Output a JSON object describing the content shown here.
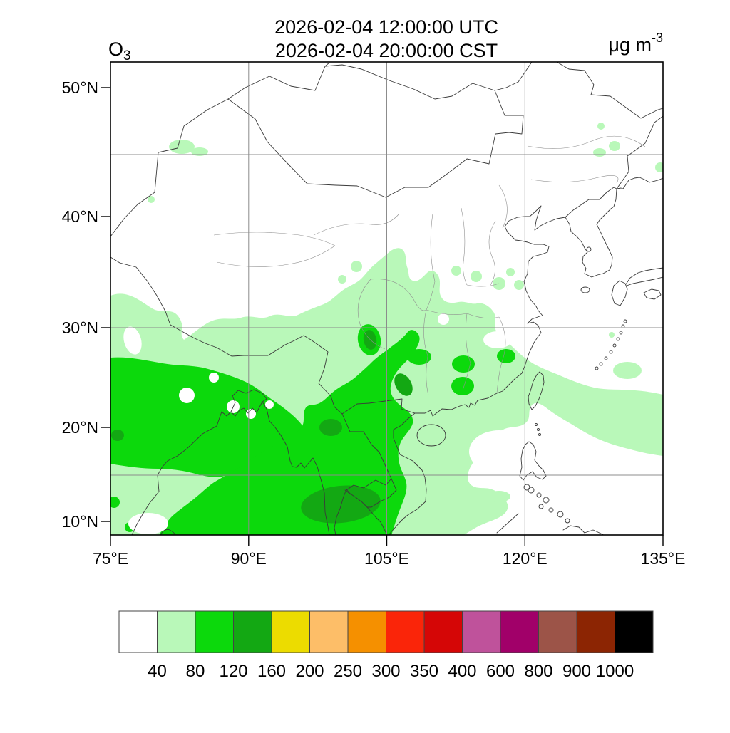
{
  "header": {
    "title_line1": "2026-02-04 12:00:00 UTC",
    "title_line2": "2026-02-04 20:00:00 CST",
    "species_main": "O",
    "species_sub": "3",
    "units_main": "μg m",
    "units_sup": "-3"
  },
  "axes": {
    "y_tick_labels": [
      "50°N",
      "40°N",
      "30°N",
      "20°N",
      "10°N"
    ],
    "x_tick_labels": [
      "75°E",
      "90°E",
      "105°E",
      "120°E",
      "135°E"
    ]
  },
  "colorbar": {
    "tick_labels": [
      "40",
      "80",
      "120",
      "160",
      "200",
      "250",
      "300",
      "350",
      "400",
      "600",
      "800",
      "900",
      "1000"
    ],
    "colors": [
      "#ffffff",
      "#b9f8b9",
      "#0cd90c",
      "#13a813",
      "#ecdc00",
      "#fdbe68",
      "#f59000",
      "#fa2509",
      "#d50606",
      "#bf529b",
      "#a10069",
      "#9c5448",
      "#8c2503",
      "#000000"
    ]
  },
  "map_style": {
    "background": "#ffffff",
    "gridline_color": "#8c8c8c",
    "coastline_color": "#3a3a3a",
    "province_color": "#8f8f8f",
    "frame_color": "#000000",
    "fill_level_40_80": "#b9f8b9",
    "fill_level_80_120": "#0cd90c",
    "fill_level_120_160": "#13a813"
  },
  "chart_data": {
    "type": "filled_contour_map",
    "title": [
      "2026-02-04 12:00:00 UTC",
      "2026-02-04 20:00:00 CST"
    ],
    "variable": "O3",
    "units": "μg m-3",
    "projection": "mercator",
    "lon_range_deg_east": [
      75,
      135
    ],
    "lat_range_deg_north": [
      8.5,
      51.8
    ],
    "x_ticks_deg_east": [
      75,
      90,
      105,
      120,
      135
    ],
    "y_ticks_deg_north": [
      50,
      40,
      30,
      20,
      10
    ],
    "gridline_lons_deg_east": [
      90,
      105,
      120
    ],
    "gridline_lats_deg_north": [
      45,
      30,
      15
    ],
    "contour_levels": [
      40,
      80,
      120,
      160,
      200,
      250,
      300,
      350,
      400,
      600,
      800,
      900,
      1000
    ],
    "palette": [
      "#ffffff",
      "#b9f8b9",
      "#0cd90c",
      "#13a813",
      "#ecdc00",
      "#fdbe68",
      "#f59000",
      "#fa2509",
      "#d50606",
      "#bf529b",
      "#a10069",
      "#9c5448",
      "#8c2503",
      "#000000"
    ],
    "max_shaded_band": "120-160",
    "regions": [
      {
        "band": "40-80",
        "description": "Widespread light-green shading over India, Bay of Bengal, Southeast Asia, southern China and adjacent western Pacific south of about 33N; band over ocean east of Taiwan to 135E near 18-27N; band over southern South China Sea near 10-15N; small isolated patches in Xinjiang near 45N and in northeast China near 45-47N."
      },
      {
        "band": "80-120",
        "description": "Large green area over central and eastern India, Ganges delta, Myanmar, Thailand and Indochina reaching the bottom of the domain; a tongue extends northeast into Yunnan/Guizhou toward 105E,28N; isolated cells over southern China near 112E,24N, 118E,25N, 111E,22N and 107E,28N."
      },
      {
        "band": "120-160",
        "description": "Small dark-green cores over Thailand/Andaman coast near 97E,12N, eastern Myanmar near 97E,20N, along the Laos-Vietnam border near 104E,23N, near 102E,28N, and at the western edge near 76E,19N."
      }
    ]
  }
}
